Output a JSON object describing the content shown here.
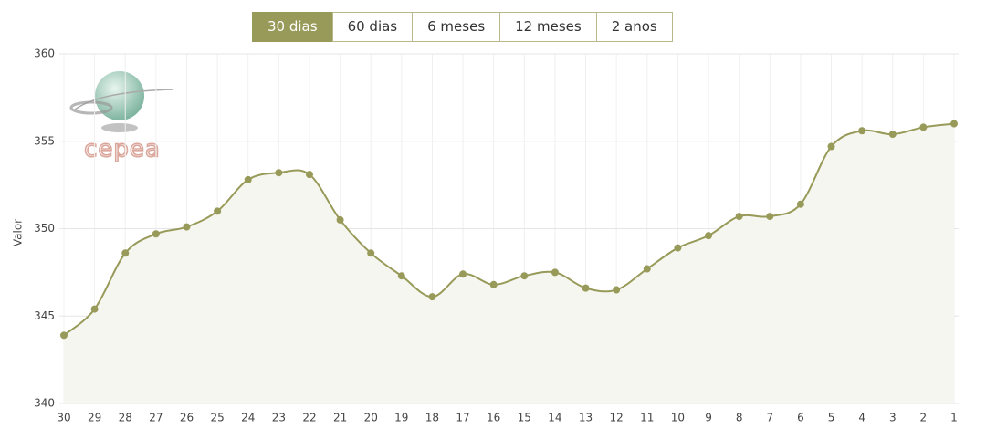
{
  "range_buttons": [
    "30 dias",
    "60 dias",
    "6 meses",
    "12 meses",
    "2 anos"
  ],
  "active_button": "30 dias",
  "logo": {
    "text": "cepea"
  },
  "chart_data": {
    "type": "area",
    "y_label": "Valor",
    "categories": [
      "30",
      "29",
      "28",
      "27",
      "26",
      "25",
      "24",
      "23",
      "22",
      "21",
      "20",
      "19",
      "18",
      "17",
      "16",
      "15",
      "14",
      "13",
      "12",
      "11",
      "10",
      "9",
      "8",
      "7",
      "6",
      "5",
      "4",
      "3",
      "2",
      "1"
    ],
    "series": [
      {
        "name": "Valor",
        "color": "#979a58",
        "values": [
          343.9,
          345.4,
          348.6,
          349.7,
          350.1,
          351.0,
          352.8,
          353.2,
          353.1,
          350.5,
          348.6,
          347.3,
          346.1,
          347.4,
          346.8,
          347.3,
          347.5,
          346.6,
          346.5,
          347.7,
          348.9,
          349.6,
          350.7,
          350.7,
          351.4,
          354.7,
          355.6,
          355.4,
          355.8,
          356.0
        ]
      }
    ],
    "ylim": [
      340,
      360
    ],
    "yticks": [
      340,
      345,
      350,
      355,
      360
    ],
    "grid": true
  }
}
